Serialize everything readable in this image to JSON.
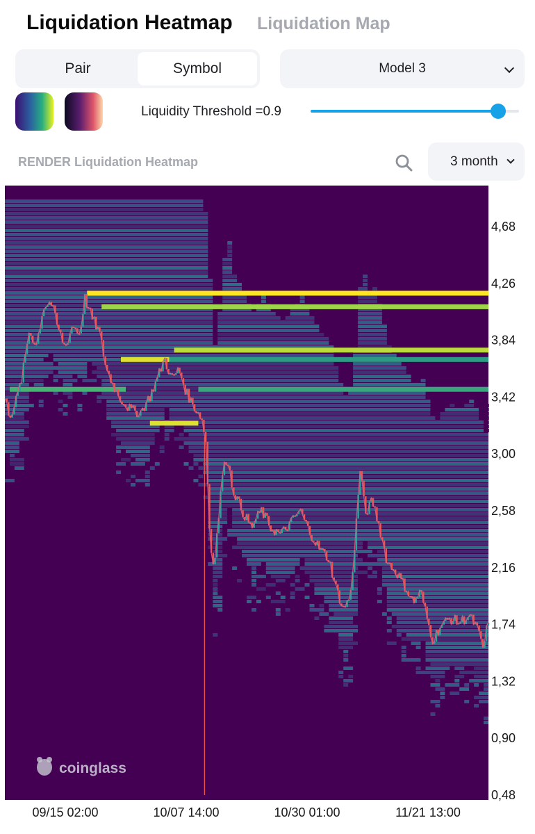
{
  "header": {
    "title": "Liquidation Heatmap",
    "alt_tab": "Liquidation Map"
  },
  "controls": {
    "segment": [
      "Pair",
      "Symbol"
    ],
    "segment_selected": "Symbol",
    "model": "Model 3",
    "threshold_label": "Liquidity Threshold =0.9",
    "threshold_value": 0.9,
    "palettes": [
      "viridis",
      "magma"
    ]
  },
  "chart_header": {
    "title": "RENDER Liquidation Heatmap",
    "range": "3 month"
  },
  "chart_data": {
    "type": "heatmap",
    "title": "RENDER Liquidation Heatmap",
    "watermark": "coinglass",
    "x_ticks": [
      "09/15 02:00",
      "10/07 14:00",
      "10/30 01:00",
      "11/21 13:00"
    ],
    "y_ticks": [
      "4,68",
      "4,26",
      "3,84",
      "3,42",
      "3,00",
      "2,58",
      "2,16",
      "1,74",
      "1,32",
      "0,90",
      "0,48"
    ],
    "y_tick_values": [
      4.68,
      4.26,
      3.84,
      3.42,
      3.0,
      2.58,
      2.16,
      1.74,
      1.32,
      0.9,
      0.48
    ],
    "ylim": [
      0.48,
      4.9
    ],
    "colorscale": "viridis",
    "price_path": [
      [
        0,
        3.4
      ],
      [
        0.01,
        3.28
      ],
      [
        0.02,
        3.35
      ],
      [
        0.035,
        3.55
      ],
      [
        0.05,
        3.9
      ],
      [
        0.065,
        3.8
      ],
      [
        0.08,
        4.08
      ],
      [
        0.095,
        4.12
      ],
      [
        0.11,
        3.92
      ],
      [
        0.125,
        3.78
      ],
      [
        0.14,
        3.95
      ],
      [
        0.155,
        3.88
      ],
      [
        0.165,
        4.15
      ],
      [
        0.18,
        4.0
      ],
      [
        0.195,
        3.9
      ],
      [
        0.21,
        3.62
      ],
      [
        0.225,
        3.5
      ],
      [
        0.24,
        3.4
      ],
      [
        0.26,
        3.32
      ],
      [
        0.28,
        3.3
      ],
      [
        0.3,
        3.42
      ],
      [
        0.315,
        3.55
      ],
      [
        0.33,
        3.7
      ],
      [
        0.345,
        3.55
      ],
      [
        0.36,
        3.62
      ],
      [
        0.375,
        3.45
      ],
      [
        0.39,
        3.35
      ],
      [
        0.405,
        3.28
      ],
      [
        0.415,
        3.12
      ],
      [
        0.425,
        2.3
      ],
      [
        0.432,
        2.18
      ],
      [
        0.44,
        2.45
      ],
      [
        0.45,
        2.85
      ],
      [
        0.46,
        2.98
      ],
      [
        0.47,
        2.75
      ],
      [
        0.49,
        2.58
      ],
      [
        0.51,
        2.45
      ],
      [
        0.53,
        2.58
      ],
      [
        0.55,
        2.45
      ],
      [
        0.57,
        2.4
      ],
      [
        0.59,
        2.48
      ],
      [
        0.61,
        2.58
      ],
      [
        0.63,
        2.42
      ],
      [
        0.65,
        2.3
      ],
      [
        0.67,
        2.22
      ],
      [
        0.685,
        2.0
      ],
      [
        0.7,
        1.85
      ],
      [
        0.715,
        1.95
      ],
      [
        0.725,
        2.4
      ],
      [
        0.735,
        2.9
      ],
      [
        0.745,
        2.55
      ],
      [
        0.76,
        2.65
      ],
      [
        0.775,
        2.45
      ],
      [
        0.79,
        2.2
      ],
      [
        0.81,
        2.12
      ],
      [
        0.83,
        2.0
      ],
      [
        0.845,
        1.9
      ],
      [
        0.86,
        1.98
      ],
      [
        0.875,
        1.75
      ],
      [
        0.885,
        1.62
      ],
      [
        0.9,
        1.72
      ],
      [
        0.92,
        1.78
      ],
      [
        0.94,
        1.75
      ],
      [
        0.96,
        1.8
      ],
      [
        0.975,
        1.72
      ],
      [
        0.99,
        1.55
      ],
      [
        1.0,
        1.78
      ]
    ],
    "bright_bands": [
      {
        "price": 4.18,
        "from": 0.17,
        "to": 1.0,
        "intensity": 1.0
      },
      {
        "price": 4.08,
        "from": 0.2,
        "to": 1.0,
        "intensity": 0.85
      },
      {
        "price": 3.76,
        "from": 0.35,
        "to": 1.0,
        "intensity": 0.9
      },
      {
        "price": 3.69,
        "from": 0.24,
        "to": 0.34,
        "intensity": 0.95
      },
      {
        "price": 3.69,
        "from": 0.34,
        "to": 1.0,
        "intensity": 0.55
      },
      {
        "price": 3.47,
        "from": 0.01,
        "to": 0.25,
        "intensity": 0.65
      },
      {
        "price": 3.47,
        "from": 0.4,
        "to": 1.0,
        "intensity": 0.6
      },
      {
        "price": 3.22,
        "from": 0.3,
        "to": 0.4,
        "intensity": 0.95
      }
    ]
  },
  "colors": {
    "accent": "#17a2e8",
    "heat_bg": "#440154",
    "axis_text": "#1a1a1a"
  }
}
